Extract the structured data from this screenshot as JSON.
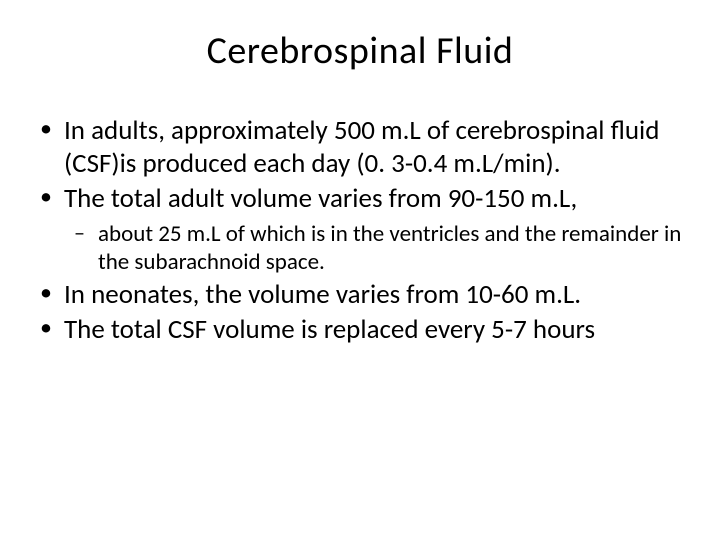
{
  "title": "Cerebrospinal Fluid",
  "bullets": {
    "b0": "In adults, approximately 500 m.L of cerebrospinal fluid (CSF)is produced each day (0. 3-0.4 m.L/min).",
    "b1": "The total adult volume varies from 90-150 m.L,",
    "b1_sub0": "about 25 m.L of which is in the ventricles and the remainder in the subarachnoid space.",
    "b2": "In neonates, the volume varies from 10-60 m.L.",
    "b3": "The total CSF volume is replaced every 5-7 hours"
  },
  "colors": {
    "background": "#ffffff",
    "text": "#000000"
  },
  "typography": {
    "title_fontsize": 38,
    "body_fontsize": 27,
    "sub_fontsize": 23,
    "font_family": "Calibri"
  }
}
